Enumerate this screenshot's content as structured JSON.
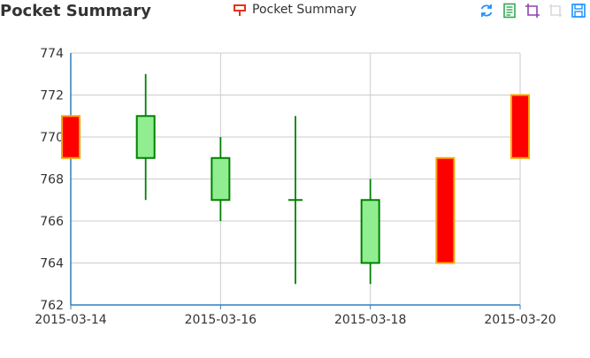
{
  "chart_data": {
    "type": "candlestick",
    "title": "Pocket Summary",
    "legend": {
      "items": [
        "Pocket Summary"
      ],
      "position": "top-center"
    },
    "x_tick_labels": [
      "2015-03-14",
      "2015-03-16",
      "2015-03-18",
      "2015-03-20"
    ],
    "ylim": [
      762,
      774
    ],
    "yticks": [
      762,
      764,
      766,
      768,
      770,
      772,
      774
    ],
    "grid": true,
    "series": [
      {
        "name": "Pocket Summary",
        "data": [
          {
            "date": "2015-03-14",
            "open": 771,
            "close": 769,
            "low": 769,
            "high": 771
          },
          {
            "date": "2015-03-15",
            "open": 769,
            "close": 771,
            "low": 767,
            "high": 773
          },
          {
            "date": "2015-03-16",
            "open": 767,
            "close": 769,
            "low": 766,
            "high": 770
          },
          {
            "date": "2015-03-17",
            "open": 767,
            "close": 767,
            "low": 763,
            "high": 771
          },
          {
            "date": "2015-03-18",
            "open": 764,
            "close": 767,
            "low": 763,
            "high": 768
          },
          {
            "date": "2015-03-19",
            "open": 769,
            "close": 764,
            "low": 764,
            "high": 769
          },
          {
            "date": "2015-03-20",
            "open": 772,
            "close": 769,
            "low": 769,
            "high": 772
          }
        ]
      }
    ],
    "colors": {
      "up_fill": "#90EE90",
      "up_border": "#008000",
      "down_fill": "#FF0000",
      "down_border": "#FFA500",
      "axis": "#2F7FBF",
      "grid": "#CCCCCC"
    }
  },
  "toolbox": {
    "icons": [
      "refresh-icon",
      "data-view-icon",
      "crop-icon",
      "restore-icon",
      "save-icon"
    ]
  }
}
